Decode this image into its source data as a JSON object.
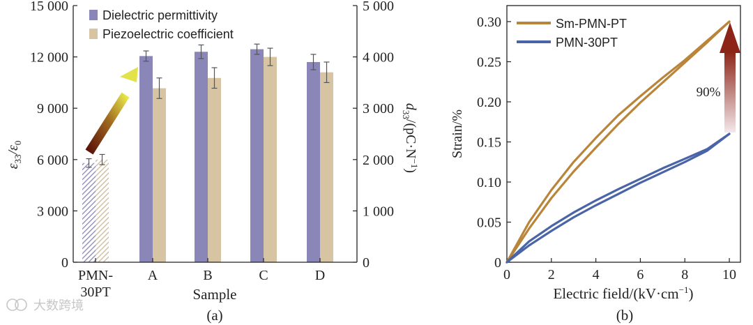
{
  "colors": {
    "permittivity": "#8a86b8",
    "piezo": "#d7c4a2",
    "sm_pmn_pt": "#b9853a",
    "pmn_30pt": "#4a64a8",
    "axis": "#222222"
  },
  "watermark": {
    "text": "大数跨境"
  },
  "chart_data": [
    {
      "type": "bar",
      "panel_label": "(a)",
      "title": "",
      "xlabel": "Sample",
      "ylabel": "ε33/ε0",
      "ylabel_base": "ε",
      "ylabel_sub1": "33",
      "ylabel_sep": "/ε",
      "ylabel_sub2": "0",
      "y2label": "d33/(pC·N−1)",
      "y2label_main": "d",
      "y2label_sub": "33",
      "y2label_rest": "/(pC·N",
      "y2label_sup": "−1",
      "y2label_close": ")",
      "categories": [
        "PMN-30PT",
        "A",
        "B",
        "C",
        "D"
      ],
      "category_lines": [
        [
          "PMN-",
          "30PT"
        ],
        [
          "A"
        ],
        [
          "B"
        ],
        [
          "C"
        ],
        [
          "D"
        ]
      ],
      "ylim": [
        0,
        15000
      ],
      "y2lim": [
        0,
        5000
      ],
      "yticks": [
        0,
        3000,
        6000,
        9000,
        12000,
        15000
      ],
      "ytick_labels": [
        "0",
        "3 000",
        "6 000",
        "9 000",
        "12 000",
        "15 000"
      ],
      "y2ticks": [
        0,
        1000,
        2000,
        3000,
        4000,
        5000
      ],
      "y2tick_labels": [
        "0",
        "1 000",
        "2 000",
        "3 000",
        "4 000",
        "5 000"
      ],
      "legend_position": "top",
      "series": [
        {
          "name": "Dielectric permittivity",
          "axis": "left",
          "values": [
            5800,
            12050,
            12300,
            12450,
            11700
          ],
          "errors": [
            250,
            300,
            400,
            300,
            450
          ],
          "hatched": [
            true,
            false,
            false,
            false,
            false
          ]
        },
        {
          "name": "Piezoelectric coefficient",
          "axis": "right",
          "values": [
            2000,
            3390,
            3590,
            4000,
            3700
          ],
          "errors": [
            100,
            200,
            200,
            170,
            200
          ],
          "hatched": [
            true,
            false,
            false,
            false,
            false
          ]
        }
      ],
      "annotation": "arrow from PMN-30PT toward A"
    },
    {
      "type": "line",
      "panel_label": "(b)",
      "title": "",
      "xlabel": "Electric field/(kV·cm−1)",
      "xlabel_main": "Electric field/(kV·cm",
      "xlabel_sup": "−1",
      "xlabel_close": ")",
      "ylabel": "Strain/%",
      "xlim": [
        0,
        10.5
      ],
      "ylim": [
        0,
        0.32
      ],
      "xticks": [
        0,
        2,
        4,
        6,
        8,
        10
      ],
      "xtick_labels": [
        "0",
        "2",
        "4",
        "6",
        "8",
        "10"
      ],
      "yticks": [
        0,
        0.05,
        0.1,
        0.15,
        0.2,
        0.25,
        0.3
      ],
      "ytick_labels": [
        "0",
        "0.05",
        "0.10",
        "0.15",
        "0.20",
        "0.25",
        "0.30"
      ],
      "legend_position": "top-left",
      "series": [
        {
          "name": "Sm-PMN-PT",
          "upper": {
            "x": [
              0,
              1,
              2,
              3,
              4,
              5,
              6,
              7,
              8,
              9,
              10
            ],
            "y": [
              0,
              0.05,
              0.09,
              0.125,
              0.155,
              0.183,
              0.207,
              0.23,
              0.252,
              0.276,
              0.3
            ]
          },
          "lower": {
            "x": [
              0,
              1,
              2,
              3,
              4,
              5,
              6,
              7,
              8,
              9,
              10
            ],
            "y": [
              0,
              0.042,
              0.08,
              0.113,
              0.143,
              0.172,
              0.199,
              0.224,
              0.249,
              0.274,
              0.3
            ]
          }
        },
        {
          "name": "PMN-30PT",
          "upper": {
            "x": [
              0,
              1,
              2,
              3,
              4,
              5,
              6,
              7,
              8,
              9,
              10
            ],
            "y": [
              0,
              0.026,
              0.045,
              0.062,
              0.077,
              0.091,
              0.104,
              0.117,
              0.129,
              0.141,
              0.16
            ]
          },
          "lower": {
            "x": [
              0,
              1,
              2,
              3,
              4,
              5,
              6,
              7,
              8,
              9,
              10
            ],
            "y": [
              0,
              0.021,
              0.039,
              0.056,
              0.071,
              0.085,
              0.099,
              0.112,
              0.125,
              0.139,
              0.16
            ]
          }
        }
      ],
      "annotation": {
        "text": "90%",
        "from": [
          10,
          0.16
        ],
        "to": [
          10,
          0.3
        ]
      }
    }
  ]
}
